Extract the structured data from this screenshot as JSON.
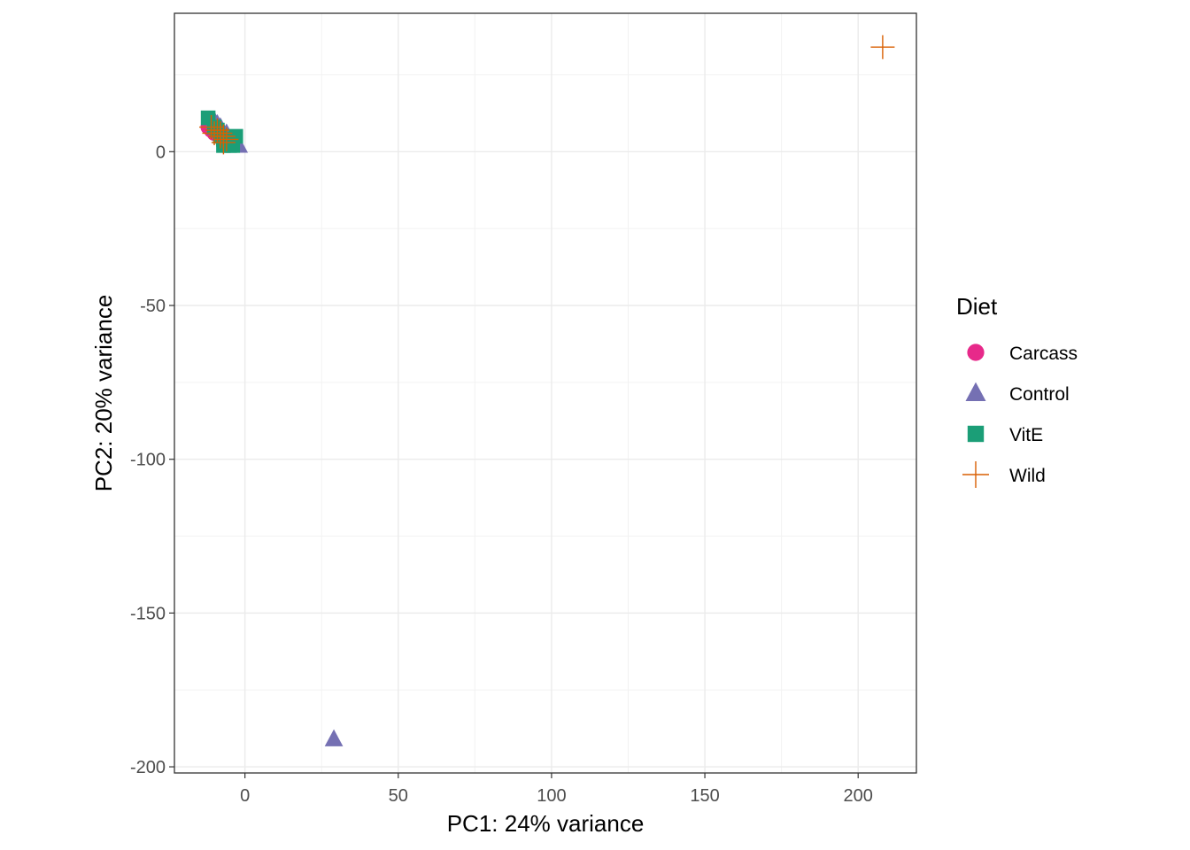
{
  "chart_data": {
    "type": "scatter",
    "title": "",
    "xlabel": "PC1: 24% variance",
    "ylabel": "PC2: 20% variance",
    "xlim": [
      -23,
      219
    ],
    "ylim": [
      -202,
      45
    ],
    "xticks": [
      0,
      50,
      100,
      150,
      200
    ],
    "yticks": [
      0,
      -50,
      -100,
      -150,
      -200
    ],
    "grid": true,
    "legend": {
      "title": "Diet",
      "placement": "right"
    },
    "series": [
      {
        "name": "Carcass",
        "shape": "circle",
        "color": "#E7298A",
        "points": [
          [
            -12,
            8
          ],
          [
            -11,
            7
          ],
          [
            -10,
            6
          ],
          [
            -9,
            7
          ],
          [
            -8,
            5
          ]
        ]
      },
      {
        "name": "Control",
        "shape": "triangle",
        "color": "#7570B3",
        "points": [
          [
            -10,
            10
          ],
          [
            -9,
            9
          ],
          [
            -8,
            8
          ],
          [
            -6,
            6
          ],
          [
            -4,
            4
          ],
          [
            -3,
            3
          ],
          [
            -2,
            2
          ],
          [
            29,
            -191
          ]
        ]
      },
      {
        "name": "VitE",
        "shape": "square",
        "color": "#1B9E77",
        "points": [
          [
            -12,
            11
          ],
          [
            -10,
            8
          ],
          [
            -9,
            7
          ],
          [
            -8,
            5
          ],
          [
            -7,
            4
          ],
          [
            -6,
            3
          ],
          [
            -7,
            2
          ],
          [
            -5,
            2
          ],
          [
            -3,
            5
          ],
          [
            -4,
            2
          ]
        ]
      },
      {
        "name": "Wild",
        "shape": "plus",
        "color": "#D95F02",
        "points": [
          [
            -11,
            8
          ],
          [
            -10,
            6
          ],
          [
            -9,
            7
          ],
          [
            -8,
            5
          ],
          [
            -7,
            5
          ],
          [
            -6,
            4
          ],
          [
            -7,
            3
          ],
          [
            -8,
            6
          ],
          [
            208,
            34
          ]
        ]
      }
    ]
  }
}
